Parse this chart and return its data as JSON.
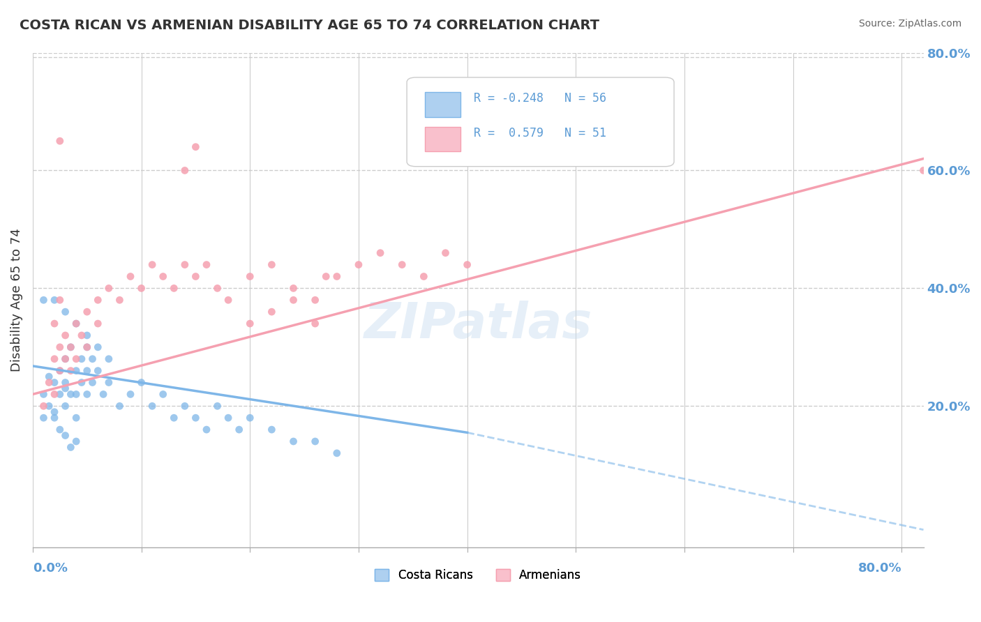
{
  "title": "COSTA RICAN VS ARMENIAN DISABILITY AGE 65 TO 74 CORRELATION CHART",
  "source_text": "Source: ZipAtlas.com",
  "ylabel": "Disability Age 65 to 74",
  "ylabel_right_ticks": [
    "20.0%",
    "40.0%",
    "60.0%",
    "80.0%"
  ],
  "ylabel_right_vals": [
    0.2,
    0.4,
    0.6,
    0.8
  ],
  "xmin": 0.0,
  "xmax": 0.8,
  "ymin": 0.0,
  "ymax": 0.8,
  "costa_rican_color": "#7eb6e8",
  "armenian_color": "#f5a0b0",
  "costa_rican_fill": "#aed0f0",
  "armenian_fill": "#f9c0cc",
  "costa_rican_R": -0.248,
  "costa_rican_N": 56,
  "armenian_R": 0.579,
  "armenian_N": 51,
  "watermark": "ZIPatlas",
  "costa_rican_scatter": [
    [
      0.01,
      0.18
    ],
    [
      0.01,
      0.22
    ],
    [
      0.015,
      0.2
    ],
    [
      0.02,
      0.24
    ],
    [
      0.02,
      0.18
    ],
    [
      0.025,
      0.26
    ],
    [
      0.025,
      0.22
    ],
    [
      0.03,
      0.28
    ],
    [
      0.03,
      0.24
    ],
    [
      0.03,
      0.2
    ],
    [
      0.035,
      0.3
    ],
    [
      0.035,
      0.22
    ],
    [
      0.04,
      0.26
    ],
    [
      0.04,
      0.22
    ],
    [
      0.04,
      0.18
    ],
    [
      0.045,
      0.28
    ],
    [
      0.045,
      0.24
    ],
    [
      0.05,
      0.3
    ],
    [
      0.05,
      0.26
    ],
    [
      0.05,
      0.22
    ],
    [
      0.055,
      0.28
    ],
    [
      0.055,
      0.24
    ],
    [
      0.06,
      0.26
    ],
    [
      0.065,
      0.22
    ],
    [
      0.07,
      0.24
    ],
    [
      0.08,
      0.2
    ],
    [
      0.09,
      0.22
    ],
    [
      0.1,
      0.24
    ],
    [
      0.11,
      0.2
    ],
    [
      0.12,
      0.22
    ],
    [
      0.13,
      0.18
    ],
    [
      0.14,
      0.2
    ],
    [
      0.15,
      0.18
    ],
    [
      0.16,
      0.16
    ],
    [
      0.17,
      0.2
    ],
    [
      0.18,
      0.18
    ],
    [
      0.19,
      0.16
    ],
    [
      0.2,
      0.18
    ],
    [
      0.22,
      0.16
    ],
    [
      0.24,
      0.14
    ],
    [
      0.26,
      0.14
    ],
    [
      0.28,
      0.12
    ],
    [
      0.01,
      0.38
    ],
    [
      0.02,
      0.38
    ],
    [
      0.03,
      0.36
    ],
    [
      0.04,
      0.34
    ],
    [
      0.05,
      0.32
    ],
    [
      0.06,
      0.3
    ],
    [
      0.07,
      0.28
    ],
    [
      0.025,
      0.16
    ],
    [
      0.03,
      0.15
    ],
    [
      0.035,
      0.13
    ],
    [
      0.04,
      0.14
    ],
    [
      0.015,
      0.25
    ],
    [
      0.02,
      0.19
    ],
    [
      0.03,
      0.23
    ]
  ],
  "armenian_scatter": [
    [
      0.01,
      0.2
    ],
    [
      0.015,
      0.24
    ],
    [
      0.02,
      0.22
    ],
    [
      0.02,
      0.28
    ],
    [
      0.025,
      0.26
    ],
    [
      0.025,
      0.3
    ],
    [
      0.03,
      0.28
    ],
    [
      0.03,
      0.32
    ],
    [
      0.035,
      0.3
    ],
    [
      0.035,
      0.26
    ],
    [
      0.04,
      0.34
    ],
    [
      0.04,
      0.28
    ],
    [
      0.045,
      0.32
    ],
    [
      0.05,
      0.36
    ],
    [
      0.05,
      0.3
    ],
    [
      0.06,
      0.38
    ],
    [
      0.06,
      0.34
    ],
    [
      0.07,
      0.4
    ],
    [
      0.08,
      0.38
    ],
    [
      0.09,
      0.42
    ],
    [
      0.1,
      0.4
    ],
    [
      0.11,
      0.44
    ],
    [
      0.12,
      0.42
    ],
    [
      0.13,
      0.4
    ],
    [
      0.14,
      0.44
    ],
    [
      0.15,
      0.42
    ],
    [
      0.16,
      0.44
    ],
    [
      0.17,
      0.4
    ],
    [
      0.18,
      0.38
    ],
    [
      0.2,
      0.42
    ],
    [
      0.22,
      0.44
    ],
    [
      0.24,
      0.4
    ],
    [
      0.26,
      0.38
    ],
    [
      0.28,
      0.42
    ],
    [
      0.3,
      0.44
    ],
    [
      0.32,
      0.46
    ],
    [
      0.34,
      0.44
    ],
    [
      0.36,
      0.42
    ],
    [
      0.38,
      0.46
    ],
    [
      0.4,
      0.44
    ],
    [
      0.025,
      0.65
    ],
    [
      0.27,
      0.42
    ],
    [
      0.14,
      0.6
    ],
    [
      0.15,
      0.64
    ],
    [
      0.2,
      0.34
    ],
    [
      0.22,
      0.36
    ],
    [
      0.24,
      0.38
    ],
    [
      0.26,
      0.34
    ],
    [
      0.82,
      0.6
    ],
    [
      0.02,
      0.34
    ],
    [
      0.025,
      0.38
    ]
  ],
  "background_color": "#ffffff",
  "grid_color": "#cccccc",
  "title_color": "#333333",
  "source_color": "#666666",
  "axis_label_color": "#5b9bd5"
}
